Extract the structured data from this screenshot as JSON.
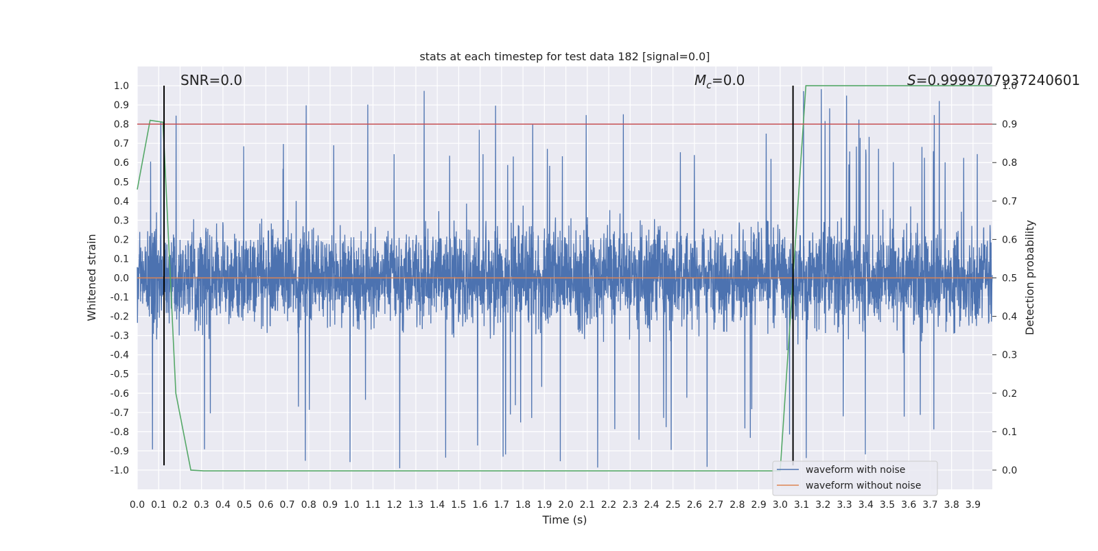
{
  "chart_data": {
    "type": "line",
    "title": "stats at each timestep for test data 182 [signal=0.0]",
    "xlabel": "Time (s)",
    "ylabel": "Whitened strain",
    "ylabel_right": "Detection probability",
    "xlim": [
      0.0,
      3.99
    ],
    "ylim": [
      -1.1,
      1.1
    ],
    "ylim_right": [
      -0.05,
      1.05
    ],
    "x_ticks": [
      "0.0",
      "0.1",
      "0.2",
      "0.3",
      "0.4",
      "0.5",
      "0.6",
      "0.7",
      "0.8",
      "0.9",
      "1.0",
      "1.1",
      "1.2",
      "1.3",
      "1.4",
      "1.5",
      "1.6",
      "1.7",
      "1.8",
      "1.9",
      "2.0",
      "2.1",
      "2.2",
      "2.3",
      "2.4",
      "2.5",
      "2.6",
      "2.7",
      "2.8",
      "2.9",
      "3.0",
      "3.1",
      "3.2",
      "3.3",
      "3.4",
      "3.5",
      "3.6",
      "3.7",
      "3.8",
      "3.9"
    ],
    "y_ticks": [
      "1.0",
      "0.9",
      "0.8",
      "0.7",
      "0.6",
      "0.5",
      "0.4",
      "0.3",
      "0.2",
      "0.1",
      "0.0",
      "-0.1",
      "-0.2",
      "-0.3",
      "-0.4",
      "-0.5",
      "-0.6",
      "-0.7",
      "-0.8",
      "-0.9",
      "-1.0"
    ],
    "y_ticks_right": [
      "1.0",
      "0.9",
      "0.8",
      "0.7",
      "0.6",
      "0.5",
      "0.4",
      "0.3",
      "0.2",
      "0.1",
      "0.0"
    ],
    "grid": true,
    "legend_position": "bottom-right",
    "series": [
      {
        "name": "waveform with noise",
        "color": "#4c72b0",
        "axis": "left",
        "kind": "noise",
        "samples": 4096,
        "range": [
          -1.0,
          1.0
        ]
      },
      {
        "name": "waveform without noise",
        "color": "#dd8452",
        "axis": "left",
        "x": [
          0.0,
          3.99
        ],
        "y": [
          0.0,
          0.0
        ]
      },
      {
        "color": "#55a868",
        "axis": "right",
        "x": [
          0.0,
          0.06,
          0.12,
          0.18,
          0.25,
          0.31,
          2.25,
          3.0,
          3.06,
          3.12,
          3.99
        ],
        "y": [
          0.73,
          0.91,
          0.905,
          0.2,
          0.0,
          -0.002,
          -0.002,
          -0.002,
          0.5,
          1.0,
          1.0
        ]
      }
    ],
    "hlines": [
      {
        "y": 0.8,
        "color": "#c44e52",
        "axis": "left"
      }
    ],
    "vlines": [
      {
        "x": 0.125,
        "y_range": [
          -0.975,
          1.0
        ],
        "color": "#000000"
      },
      {
        "x": 3.06,
        "y_range": [
          -0.975,
          1.0
        ],
        "color": "#000000"
      }
    ],
    "annotations": [
      {
        "text": "SNR=0.0"
      },
      {
        "text": "Mc=0.0",
        "symbol": "M",
        "subscript": "c",
        "value": "=0.0"
      },
      {
        "text": "S=0.9999707937240601",
        "symbol": "S",
        "value": "=0.9999707937240601"
      }
    ]
  },
  "colors": {
    "plot_background": "#eaeaf2",
    "grid": "#ffffff",
    "axis_text": "#222222"
  }
}
